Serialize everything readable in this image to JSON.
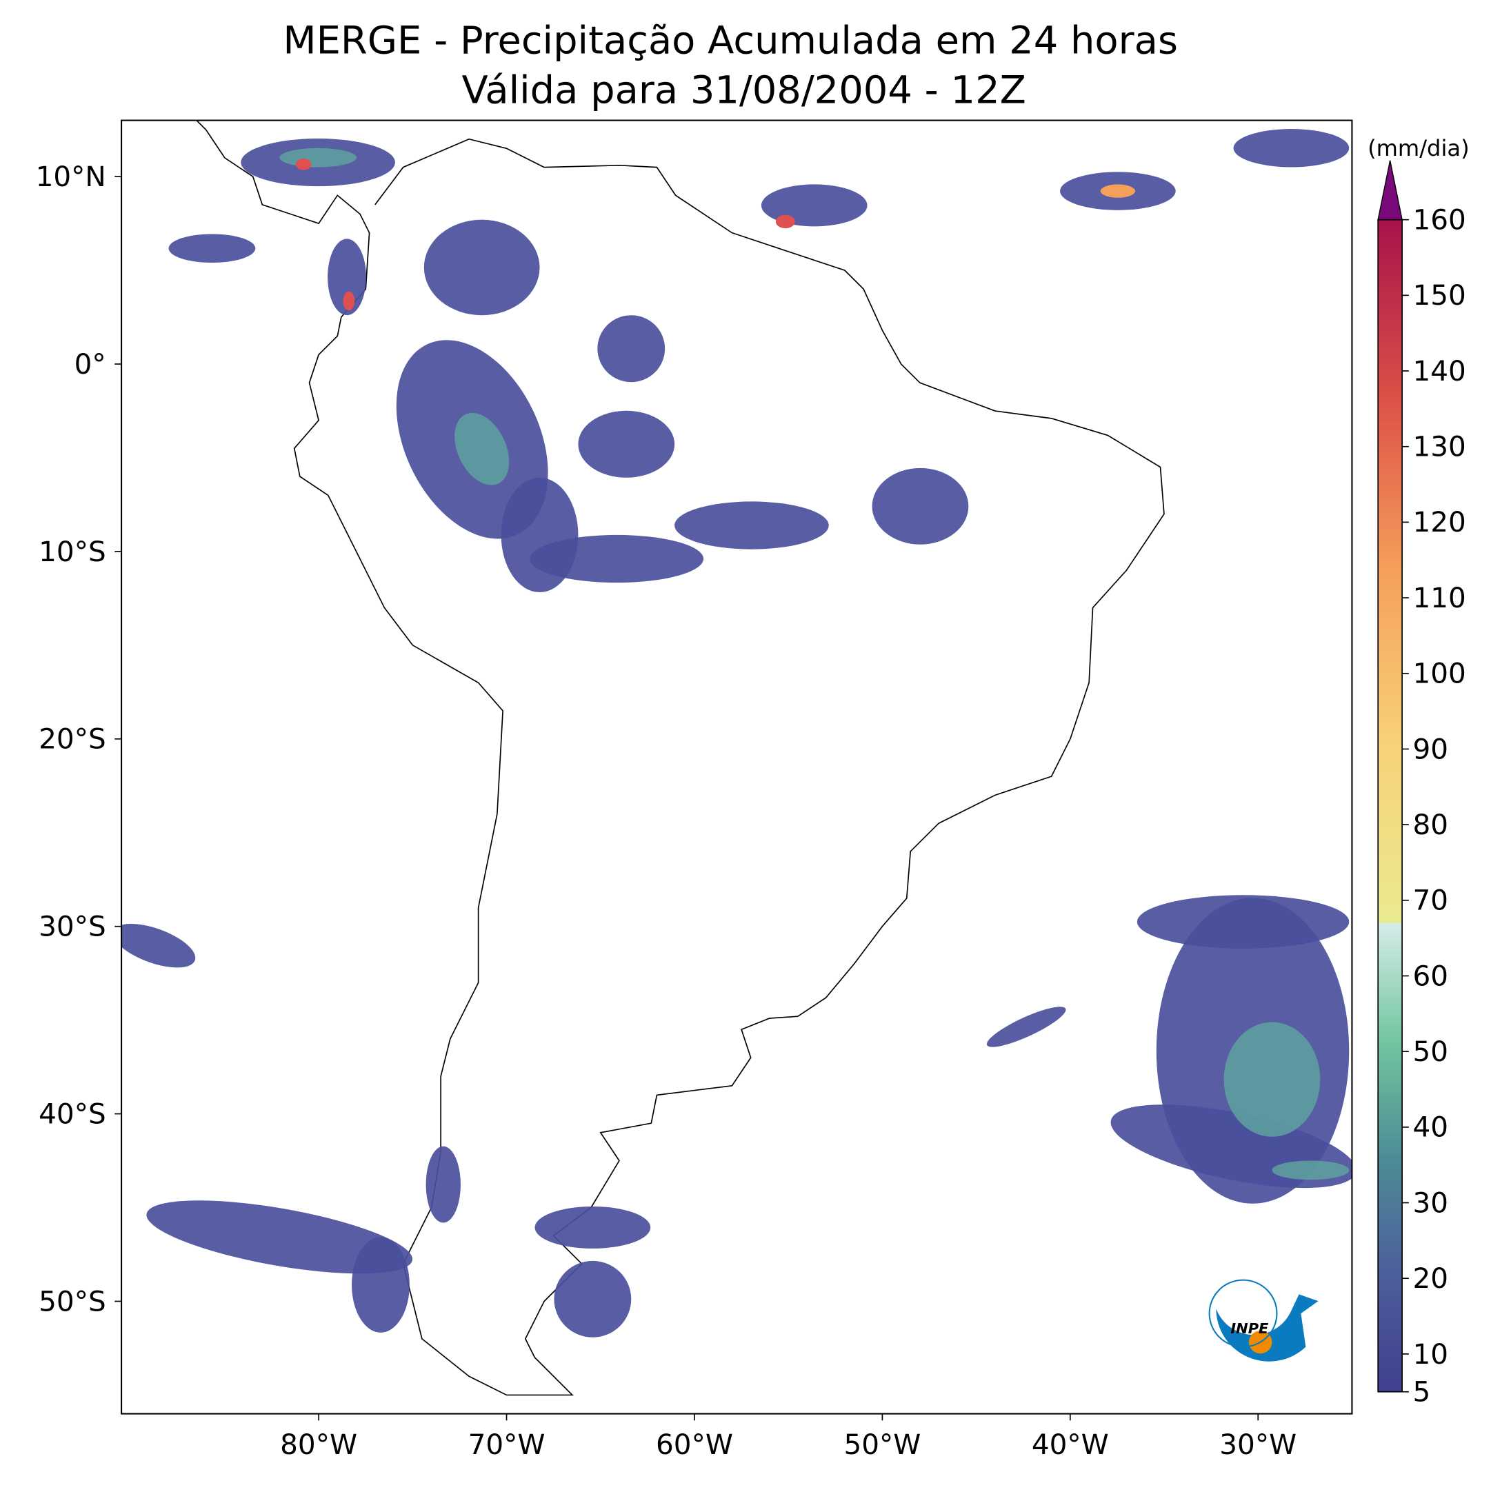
{
  "title": [
    "MERGE - Precipitação Acumulada em 24 horas",
    "Válida para 31/08/2004 - 12Z"
  ],
  "map": {
    "lon_range": [
      -90.5,
      -25
    ],
    "lat_range": [
      -56,
      13
    ],
    "lon_ticks": [
      {
        "value": -80,
        "label": "80°W"
      },
      {
        "value": -70,
        "label": "70°W"
      },
      {
        "value": -60,
        "label": "60°W"
      },
      {
        "value": -50,
        "label": "50°W"
      },
      {
        "value": -40,
        "label": "40°W"
      },
      {
        "value": -30,
        "label": "30°W"
      }
    ],
    "lat_ticks": [
      {
        "value": 10,
        "label": "10°N"
      },
      {
        "value": 0,
        "label": "0°"
      },
      {
        "value": -10,
        "label": "10°S"
      },
      {
        "value": -20,
        "label": "20°S"
      },
      {
        "value": -30,
        "label": "30°S"
      },
      {
        "value": -40,
        "label": "40°S"
      },
      {
        "value": -50,
        "label": "50°S"
      }
    ]
  },
  "colorbar": {
    "unit": "(mm/dia)",
    "range": [
      5,
      160
    ],
    "ticks": [
      5,
      10,
      20,
      30,
      40,
      50,
      60,
      70,
      80,
      90,
      100,
      110,
      120,
      130,
      140,
      150,
      160
    ]
  },
  "logo": "INPE"
}
